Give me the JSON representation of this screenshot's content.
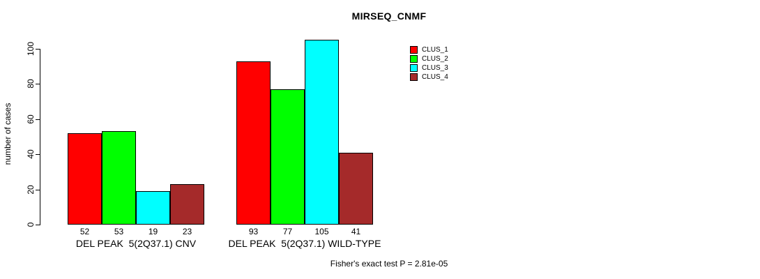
{
  "chart_data": {
    "type": "bar",
    "title": "MIRSEQ_CNMF",
    "ylabel": "number of cases",
    "xlabel": "",
    "ylim": [
      0,
      105
    ],
    "yticks": [
      0,
      20,
      40,
      60,
      80,
      100
    ],
    "grid": false,
    "legend_position": "right-of-plot-top",
    "categories": [
      "DEL PEAK  5(2Q37.1) CNV",
      "DEL PEAK  5(2Q37.1) WILD-TYPE"
    ],
    "series": [
      {
        "name": "CLUS_1",
        "color": "#FF0000",
        "values": [
          52,
          93
        ]
      },
      {
        "name": "CLUS_2",
        "color": "#00FF00",
        "values": [
          53,
          77
        ]
      },
      {
        "name": "CLUS_3",
        "color": "#00FFFF",
        "values": [
          19,
          105
        ]
      },
      {
        "name": "CLUS_4",
        "color": "#A52A2A",
        "values": [
          23,
          41
        ]
      }
    ],
    "bar_value_labels_shown": true,
    "annotation": "Fisher's exact test P = 2.81e-05"
  },
  "colors": {
    "background": "#FFFFFF",
    "axis": "#000000",
    "text": "#000000"
  }
}
